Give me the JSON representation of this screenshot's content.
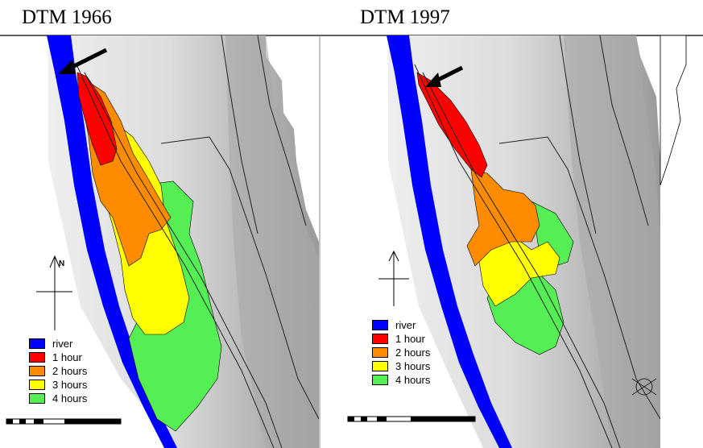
{
  "titles": {
    "left": "DTM 1966",
    "right": "DTM 1997"
  },
  "north_label": "N",
  "legend": [
    {
      "label": "river",
      "color": "#0000ff"
    },
    {
      "label": "1 hour",
      "color": "#ff0000"
    },
    {
      "label": "2 hours",
      "color": "#ff8c00"
    },
    {
      "label": "3 hours",
      "color": "#ffff00"
    },
    {
      "label": "4 hours",
      "color": "#55ee55"
    }
  ],
  "colors": {
    "terrain_light": "#e4e4e4",
    "terrain_dark": "#9a9a9a",
    "road": "#222222"
  }
}
